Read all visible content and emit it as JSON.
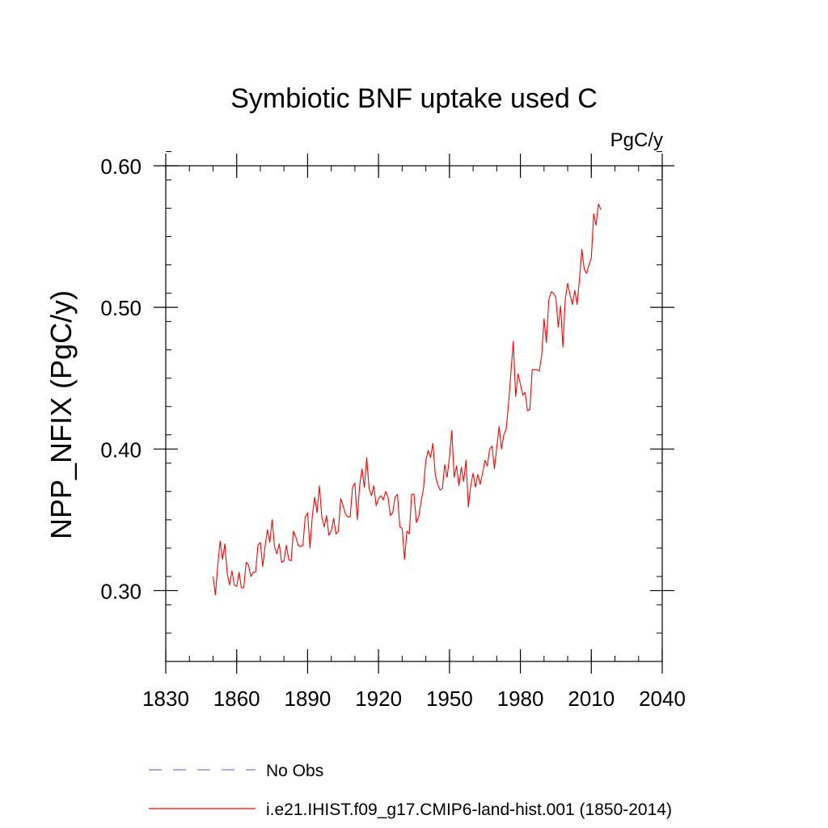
{
  "chart_data": {
    "type": "line",
    "title": "Symbiotic BNF uptake used C",
    "units": "PgC/y",
    "ylabel": "NPP_NFIX  (PgC/y)",
    "xlabel": "",
    "xlim": [
      1830,
      2040
    ],
    "ylim": [
      0.25,
      0.6
    ],
    "x_ticks": [
      1830,
      1860,
      1890,
      1920,
      1950,
      1980,
      2010,
      2040
    ],
    "x_tick_labels": [
      "1830",
      "1860",
      "1890",
      "1920",
      "1950",
      "1980",
      "2010",
      "2040"
    ],
    "y_ticks": [
      0.3,
      0.4,
      0.5,
      0.6
    ],
    "y_tick_labels": [
      "0.30",
      "0.40",
      "0.50",
      "0.60"
    ],
    "y_minor_step": 0.02,
    "x_minor_step": 10,
    "grid": false,
    "legend_position": "bottom",
    "legend": [
      {
        "label": "No Obs",
        "color": "#7b7bd6",
        "style": "dashed"
      },
      {
        "label": "i.e21.IHIST.f09_g17.CMIP6-land-hist.001 (1850-2014)",
        "color": "#ff0000",
        "style": "solid"
      }
    ],
    "series": [
      {
        "name": "i.e21.IHIST.f09_g17.CMIP6-land-hist.001 (1850-2014)",
        "color": "#ff0000",
        "x_start": 1850,
        "x_step": 1,
        "values": [
          0.31,
          0.297,
          0.318,
          0.335,
          0.322,
          0.333,
          0.312,
          0.304,
          0.314,
          0.304,
          0.303,
          0.313,
          0.302,
          0.302,
          0.32,
          0.318,
          0.31,
          0.313,
          0.313,
          0.332,
          0.334,
          0.317,
          0.331,
          0.343,
          0.334,
          0.35,
          0.331,
          0.326,
          0.333,
          0.32,
          0.321,
          0.332,
          0.322,
          0.321,
          0.342,
          0.338,
          0.332,
          0.331,
          0.332,
          0.352,
          0.355,
          0.33,
          0.353,
          0.366,
          0.355,
          0.374,
          0.352,
          0.345,
          0.353,
          0.339,
          0.342,
          0.351,
          0.34,
          0.342,
          0.365,
          0.36,
          0.354,
          0.352,
          0.352,
          0.373,
          0.376,
          0.35,
          0.374,
          0.386,
          0.373,
          0.394,
          0.372,
          0.367,
          0.374,
          0.36,
          0.365,
          0.367,
          0.364,
          0.37,
          0.366,
          0.353,
          0.355,
          0.366,
          0.368,
          0.345,
          0.344,
          0.322,
          0.342,
          0.34,
          0.368,
          0.368,
          0.348,
          0.352,
          0.363,
          0.372,
          0.392,
          0.399,
          0.394,
          0.404,
          0.382,
          0.375,
          0.371,
          0.372,
          0.389,
          0.38,
          0.394,
          0.413,
          0.38,
          0.388,
          0.374,
          0.387,
          0.377,
          0.392,
          0.359,
          0.374,
          0.383,
          0.373,
          0.382,
          0.375,
          0.383,
          0.392,
          0.388,
          0.4,
          0.402,
          0.386,
          0.401,
          0.416,
          0.4,
          0.41,
          0.414,
          0.432,
          0.454,
          0.476,
          0.437,
          0.453,
          0.446,
          0.438,
          0.44,
          0.427,
          0.428,
          0.456,
          0.456,
          0.456,
          0.455,
          0.466,
          0.492,
          0.475,
          0.505,
          0.511,
          0.51,
          0.507,
          0.486,
          0.501,
          0.472,
          0.506,
          0.517,
          0.509,
          0.502,
          0.512,
          0.502,
          0.52,
          0.541,
          0.527,
          0.524,
          0.53,
          0.535,
          0.566,
          0.558,
          0.573,
          0.569
        ]
      }
    ]
  }
}
